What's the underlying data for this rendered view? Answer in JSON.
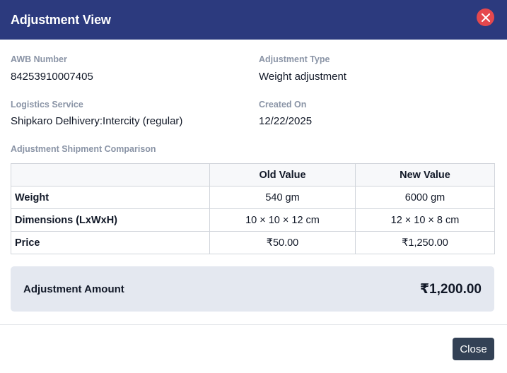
{
  "modal": {
    "title": "Adjustment View",
    "close_icon": "close-icon"
  },
  "fields": {
    "awb_label": "AWB Number",
    "awb_value": "84253910007405",
    "type_label": "Adjustment Type",
    "type_value": "Weight adjustment",
    "service_label": "Logistics Service",
    "service_value": "Shipkaro Delhivery:Intercity (regular)",
    "created_label": "Created On",
    "created_value": "12/22/2025"
  },
  "comparison": {
    "section_label": "Adjustment Shipment Comparison",
    "headers": [
      "",
      "Old Value",
      "New Value"
    ],
    "rows": [
      {
        "label": "Weight",
        "old": "540 gm",
        "new": "6000 gm"
      },
      {
        "label": "Dimensions (LxWxH)",
        "old": "10 × 10 × 12 cm",
        "new": "12 × 10 × 8 cm"
      },
      {
        "label": "Price",
        "old": "₹50.00",
        "new": "₹1,250.00"
      }
    ]
  },
  "summary": {
    "label": "Adjustment Amount",
    "value": "₹1,200.00"
  },
  "footer": {
    "close_label": "Close"
  },
  "colors": {
    "header_bg": "#2c3a7e",
    "close_icon_bg": "#e5484d",
    "amount_box_bg": "#e4e8f0",
    "close_button_bg": "#334155"
  }
}
